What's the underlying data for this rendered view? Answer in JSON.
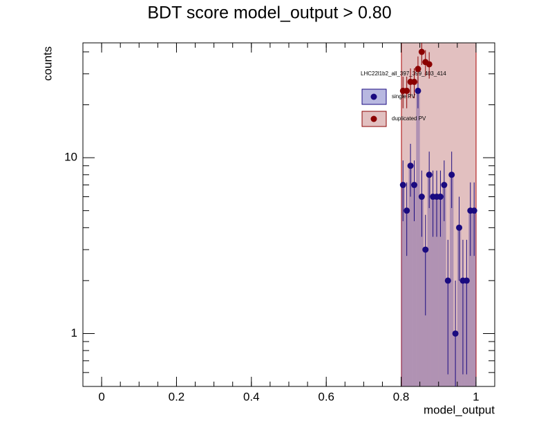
{
  "chart_data": {
    "type": "scatter",
    "title": "BDT score  model_output > 0.80",
    "xlabel": "model_output",
    "ylabel": "counts",
    "legend_title": "LHC22l1b2_all_397_399_403_414",
    "log_y": true,
    "x": [
      0.805,
      0.815,
      0.825,
      0.835,
      0.845,
      0.855,
      0.865,
      0.875,
      0.885,
      0.895,
      0.905,
      0.915,
      0.925,
      0.935,
      0.945,
      0.955,
      0.965,
      0.975,
      0.985,
      0.995
    ],
    "series": [
      {
        "name": "single PV",
        "color": "#1a0a80",
        "values": [
          7,
          5,
          9,
          7,
          24,
          6,
          3,
          8,
          6,
          6,
          6,
          7,
          2,
          8,
          1,
          4,
          2,
          2,
          5,
          5
        ]
      },
      {
        "name": "duplicated PV",
        "color": "#8b0000",
        "values": [
          24,
          24,
          27,
          27,
          32,
          40,
          35,
          34,
          null,
          null,
          null,
          null,
          null,
          null,
          null,
          null,
          null,
          null,
          null,
          null
        ]
      }
    ],
    "xlim": [
      -0.05,
      1.05
    ],
    "xticks": [
      0,
      0.2,
      0.4,
      0.6,
      0.8,
      1
    ],
    "ylim": [
      0.5,
      45
    ],
    "yticks": [
      1,
      10
    ]
  }
}
